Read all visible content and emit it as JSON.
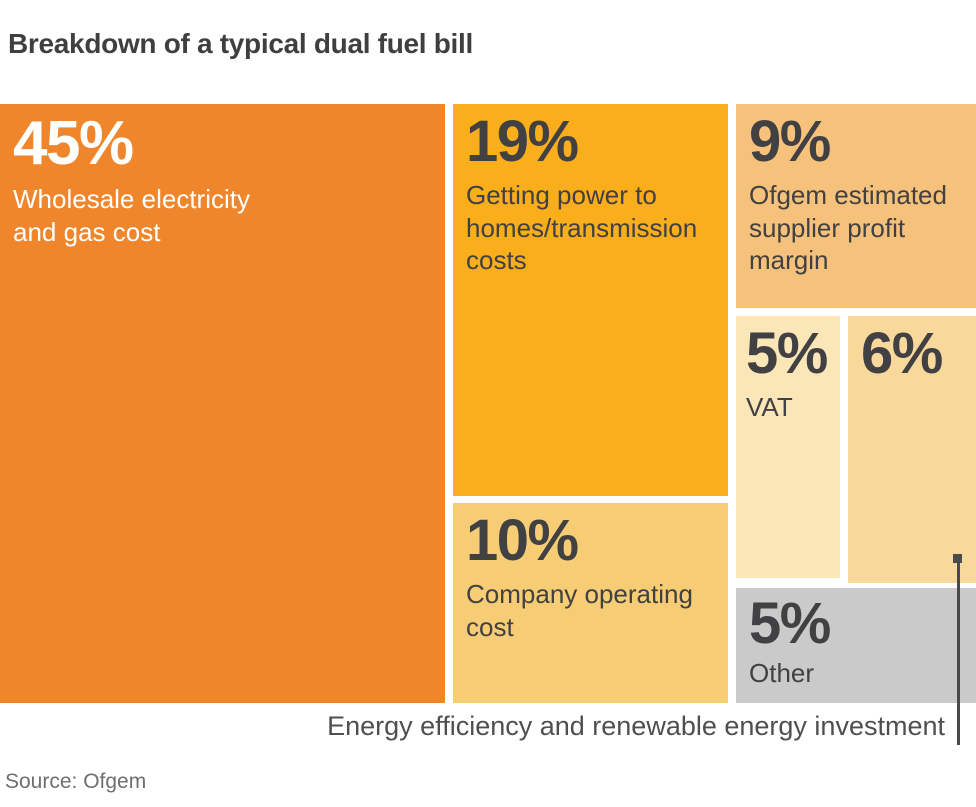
{
  "title": "Breakdown of a typical dual fuel bill",
  "source_label": "Source: Ofgem",
  "colors": {
    "background": "#FFFFFF",
    "title_text": "#3F3F3F",
    "annotation_text": "#4F4F4F",
    "source_text": "#6F6F6F",
    "callout_line": "#4A4A4A"
  },
  "chart_data": {
    "type": "treemap",
    "title": "Breakdown of a typical dual fuel bill",
    "source": "Ofgem",
    "segments": [
      {
        "name": "wholesale",
        "value_label": "45%",
        "value": 45,
        "label": "Wholesale electricity and gas cost",
        "color": "#F0862C",
        "text_color": "#FFFFFF",
        "label_position": "inside"
      },
      {
        "name": "transmission",
        "value_label": "19%",
        "value": 19,
        "label": "Getting power to homes/transmission costs",
        "color": "#FAAE1B",
        "text_color": "#414042",
        "label_position": "inside"
      },
      {
        "name": "operating",
        "value_label": "10%",
        "value": 10,
        "label": "Company operating cost",
        "color": "#F6CD74",
        "text_color": "#414042",
        "label_position": "inside"
      },
      {
        "name": "profit",
        "value_label": "9%",
        "value": 9,
        "label": "Ofgem estimated supplier profit margin",
        "color": "#F6C17B",
        "text_color": "#414042",
        "label_position": "inside"
      },
      {
        "name": "vat",
        "value_label": "5%",
        "value": 5,
        "label": "VAT",
        "color": "#FBE6B8",
        "text_color": "#414042",
        "label_position": "inside"
      },
      {
        "name": "renewables",
        "value_label": "6%",
        "value": 6,
        "label": "Energy efficiency and renewable energy investment",
        "color": "#F9D89B",
        "text_color": "#414042",
        "label_position": "external-callout"
      },
      {
        "name": "other",
        "value_label": "5%",
        "value": 5,
        "label": "Other",
        "color": "#CACACA",
        "text_color": "#414042",
        "label_position": "inside"
      }
    ]
  }
}
